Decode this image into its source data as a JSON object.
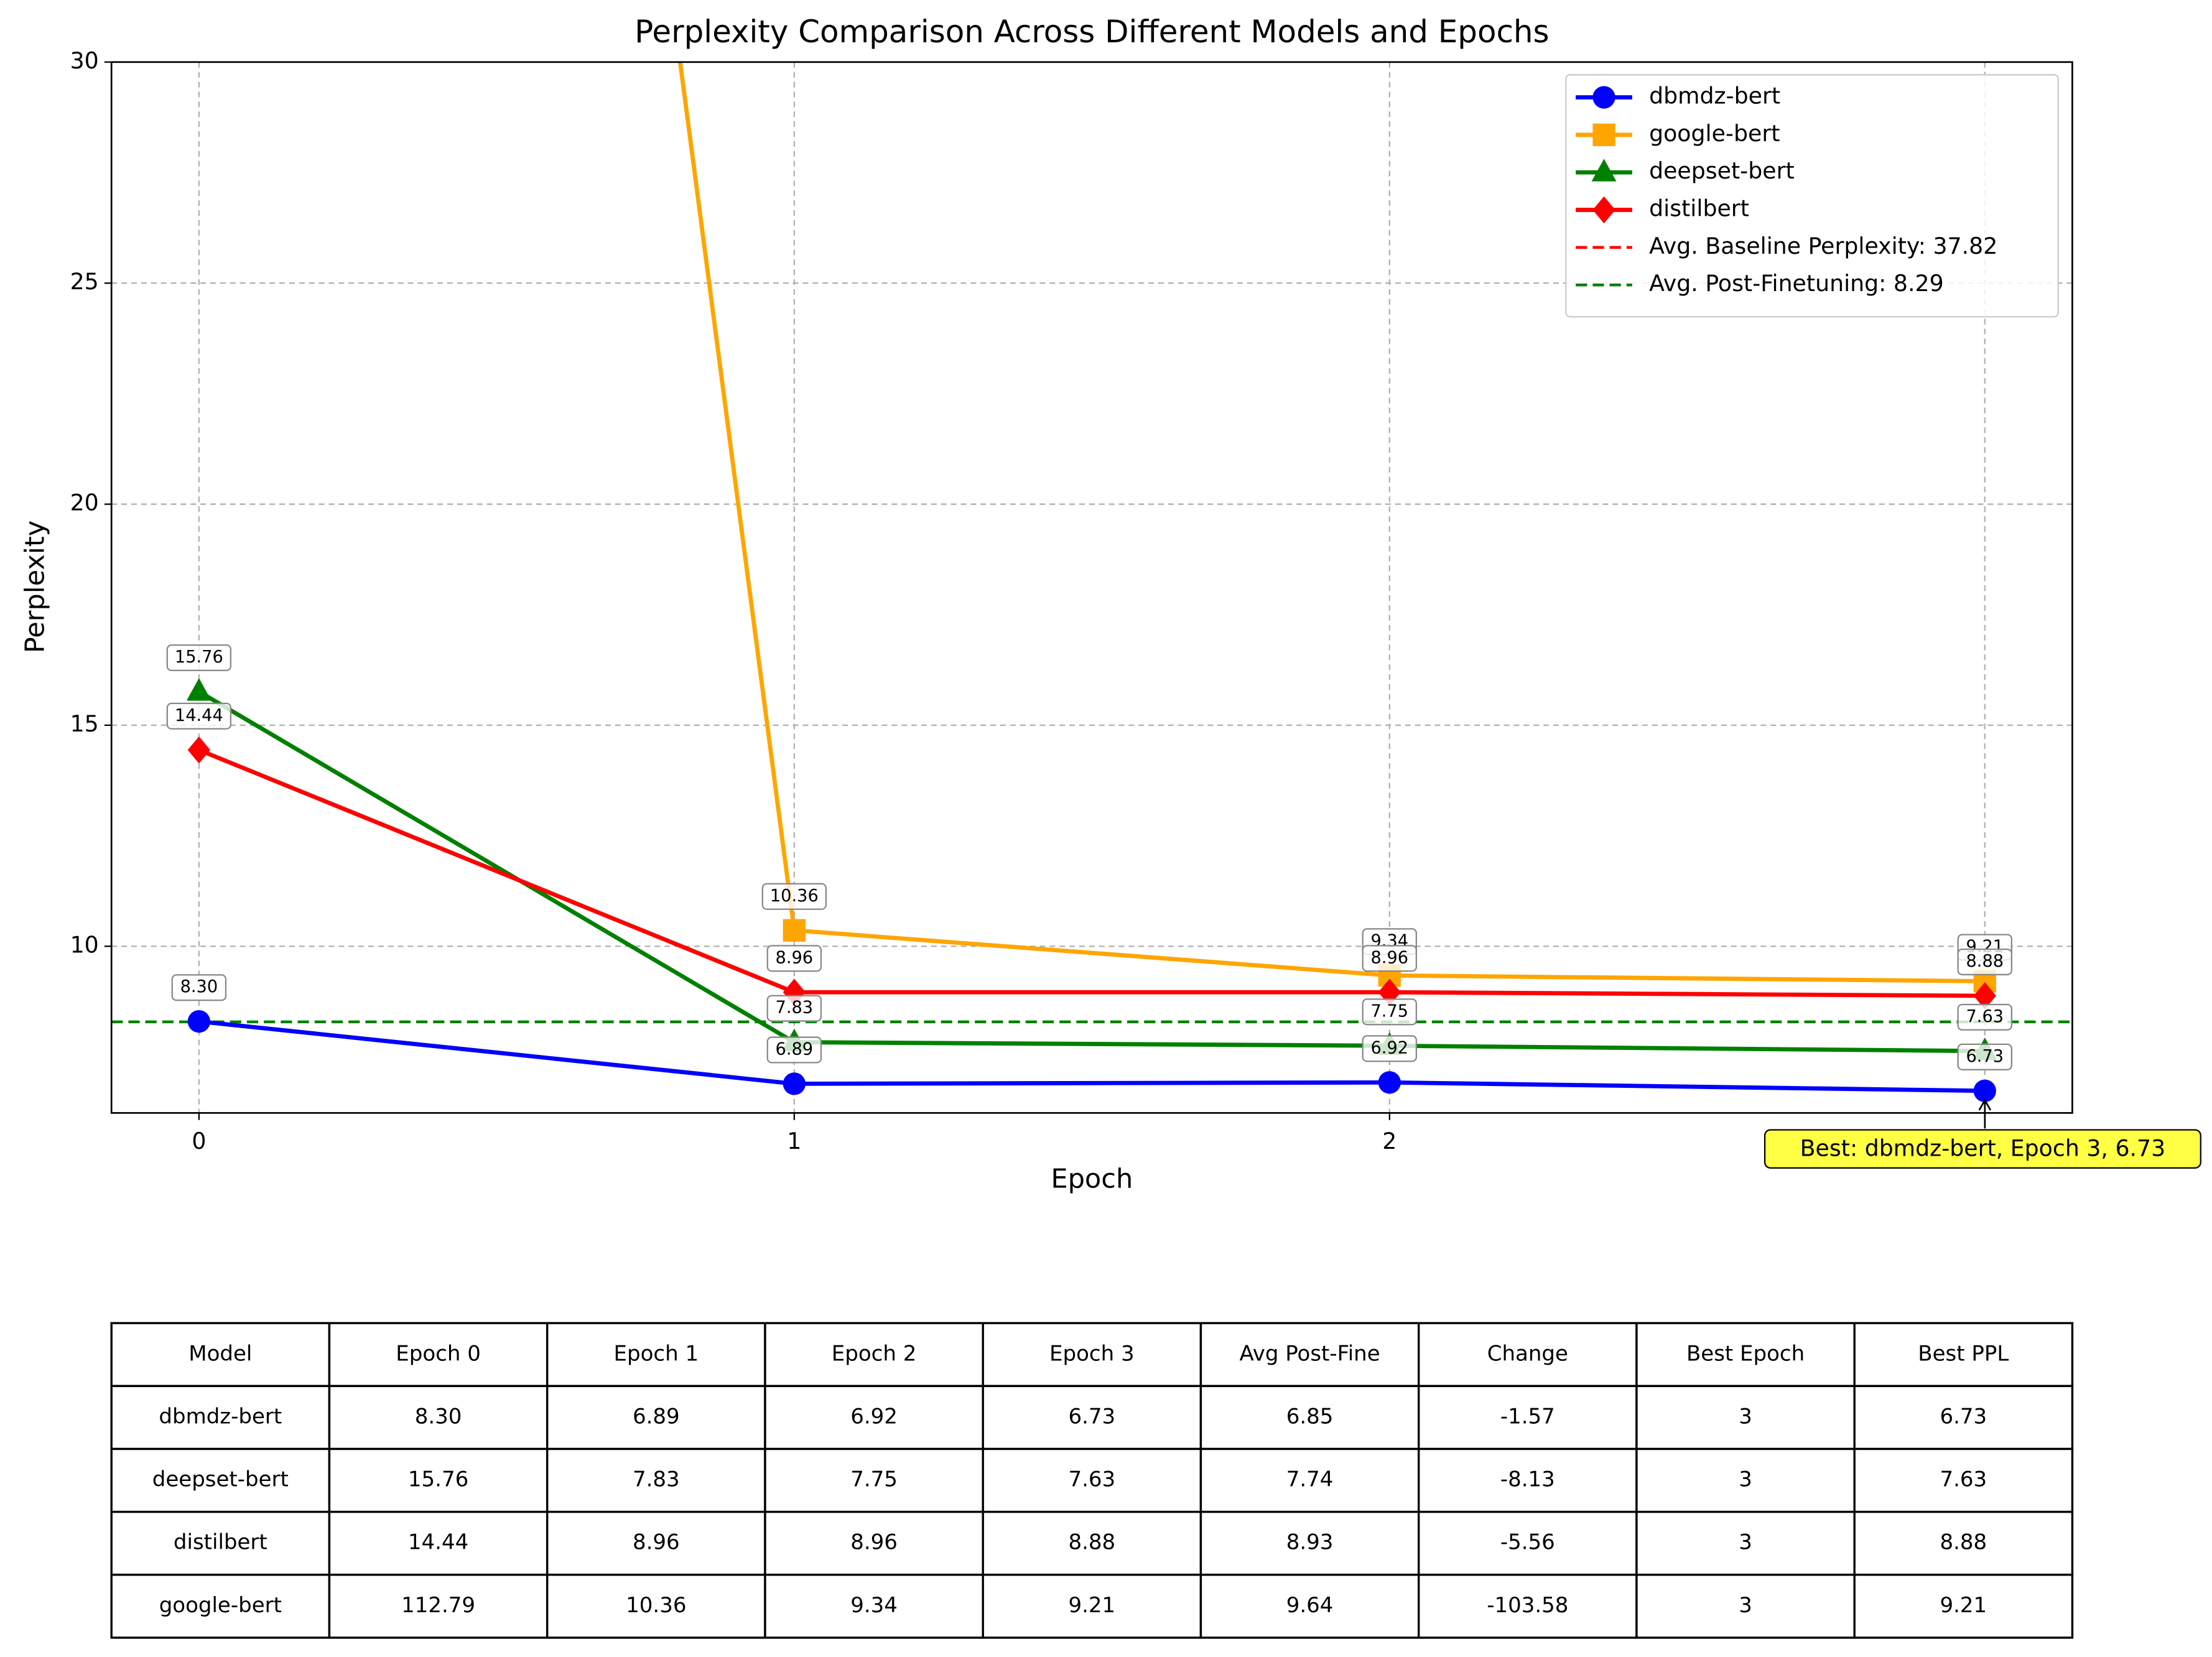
{
  "chart_data": {
    "type": "line",
    "title": "Perplexity Comparison Across Different Models and Epochs",
    "x_label": "Epoch",
    "y_label": "Perplexity",
    "x": [
      0,
      1,
      2,
      3
    ],
    "xlim": [
      -0.147,
      3.147
    ],
    "xticks": [
      0,
      1,
      2,
      3
    ],
    "ylim": [
      6.23,
      30
    ],
    "yticks": [
      10,
      15,
      20,
      25,
      30
    ],
    "grid": true,
    "legend": "upper right",
    "series": [
      {
        "name": "dbmdz-bert",
        "color": "#0000ff",
        "marker": "circle",
        "values": [
          8.3,
          6.89,
          6.92,
          6.73
        ],
        "value_labels": [
          "8.30",
          "6.89",
          "6.92",
          "6.73"
        ]
      },
      {
        "name": "google-bert",
        "color": "#ffa500",
        "marker": "square",
        "values": [
          112.79,
          10.36,
          9.34,
          9.21
        ],
        "value_labels": [
          "112.79",
          "10.36",
          "9.34",
          "9.21"
        ]
      },
      {
        "name": "deepset-bert",
        "color": "#008000",
        "marker": "triangle",
        "values": [
          15.76,
          7.83,
          7.75,
          7.63
        ],
        "value_labels": [
          "15.76",
          "7.83",
          "7.75",
          "7.63"
        ]
      },
      {
        "name": "distilbert",
        "color": "#ff0000",
        "marker": "diamond",
        "values": [
          14.44,
          8.96,
          8.96,
          8.88
        ],
        "value_labels": [
          "14.44",
          "8.96",
          "8.96",
          "8.88"
        ]
      }
    ],
    "hlines": [
      {
        "name": "Avg. Baseline Perplexity: 37.82",
        "value": 37.82,
        "color": "#ff0000"
      },
      {
        "name": "Avg. Post-Finetuning: 8.29",
        "value": 8.29,
        "color": "#008000"
      }
    ],
    "annotation": "Best: dbmdz-bert, Epoch 3, 6.73"
  },
  "table": {
    "header": [
      "Model",
      "Epoch 0",
      "Epoch 1",
      "Epoch 2",
      "Epoch 3",
      "Avg Post-Fine",
      "Change",
      "Best Epoch",
      "Best PPL"
    ],
    "rows": [
      [
        "dbmdz-bert",
        "8.30",
        "6.89",
        "6.92",
        "6.73",
        "6.85",
        "-1.57",
        "3",
        "6.73"
      ],
      [
        "deepset-bert",
        "15.76",
        "7.83",
        "7.75",
        "7.63",
        "7.74",
        "-8.13",
        "3",
        "7.63"
      ],
      [
        "distilbert",
        "14.44",
        "8.96",
        "8.96",
        "8.88",
        "8.93",
        "-5.56",
        "3",
        "8.88"
      ],
      [
        "google-bert",
        "112.79",
        "10.36",
        "9.34",
        "9.21",
        "9.64",
        "-103.58",
        "3",
        "9.21"
      ]
    ]
  }
}
